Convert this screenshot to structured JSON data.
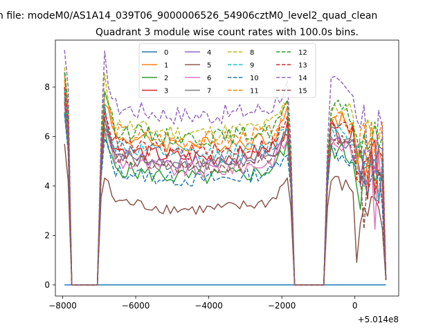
{
  "figure": {
    "suptitle": "n file: modeM0/AS1A14_039T06_9000006526_54906cztM0_level2_quad_clean"
  },
  "chart_data": {
    "type": "line",
    "title": "Quadrant 3 module wise count rates with 100.0s bins.",
    "xlabel": "",
    "ylabel": "",
    "x_offset_label": "+5.014e8",
    "xlim": [
      -8200,
      1200
    ],
    "ylim": [
      -0.45,
      9.9
    ],
    "xticks": [
      -8000,
      -6000,
      -4000,
      -2000,
      0
    ],
    "xtick_labels": [
      "−8000",
      "−6000",
      "−4000",
      "−2000",
      "0"
    ],
    "yticks": [
      0,
      2,
      4,
      6,
      8
    ],
    "ytick_labels": [
      "0",
      "2",
      "4",
      "6",
      "8"
    ],
    "grid": false,
    "legend": {
      "placement": "upper-center",
      "ncol": 4
    },
    "series": [
      {
        "name": "0",
        "color": "#1f77b4",
        "style": "solid",
        "base": 0,
        "amp": 0
      },
      {
        "name": "1",
        "color": "#ff7f0e",
        "style": "solid",
        "base": 6.1,
        "amp": 0.35
      },
      {
        "name": "2",
        "color": "#2ca02c",
        "style": "solid",
        "base": 4.8,
        "amp": 0.35
      },
      {
        "name": "3",
        "color": "#d62728",
        "style": "solid",
        "base": 5.6,
        "amp": 0.35
      },
      {
        "name": "4",
        "color": "#9467bd",
        "style": "solid",
        "base": 5.4,
        "amp": 0.3
      },
      {
        "name": "5",
        "color": "#8c564b",
        "style": "solid",
        "base": 3.5,
        "amp": 0.25
      },
      {
        "name": "6",
        "color": "#e377c2",
        "style": "solid",
        "base": 5.1,
        "amp": 0.35
      },
      {
        "name": "7",
        "color": "#7f7f7f",
        "style": "solid",
        "base": 5.3,
        "amp": 0.3
      },
      {
        "name": "8",
        "color": "#bcbd22",
        "style": "dashed",
        "base": 6.6,
        "amp": 0.35
      },
      {
        "name": "9",
        "color": "#17becf",
        "style": "dashed",
        "base": 5.7,
        "amp": 0.35
      },
      {
        "name": "10",
        "color": "#1f77b4",
        "style": "dashed",
        "base": 4.7,
        "amp": 0.3
      },
      {
        "name": "11",
        "color": "#ff7f0e",
        "style": "dashed",
        "base": 6.3,
        "amp": 0.35
      },
      {
        "name": "12",
        "color": "#2ca02c",
        "style": "dashed",
        "base": 6.4,
        "amp": 0.35
      },
      {
        "name": "13",
        "color": "#d62728",
        "style": "dashed",
        "base": 5.8,
        "amp": 0.35
      },
      {
        "name": "14",
        "color": "#9467bd",
        "style": "dashed",
        "base": 7.3,
        "amp": 0.4
      },
      {
        "name": "15",
        "color": "#8c564b",
        "style": "dashed",
        "base": 5.2,
        "amp": 0.3
      }
    ]
  }
}
